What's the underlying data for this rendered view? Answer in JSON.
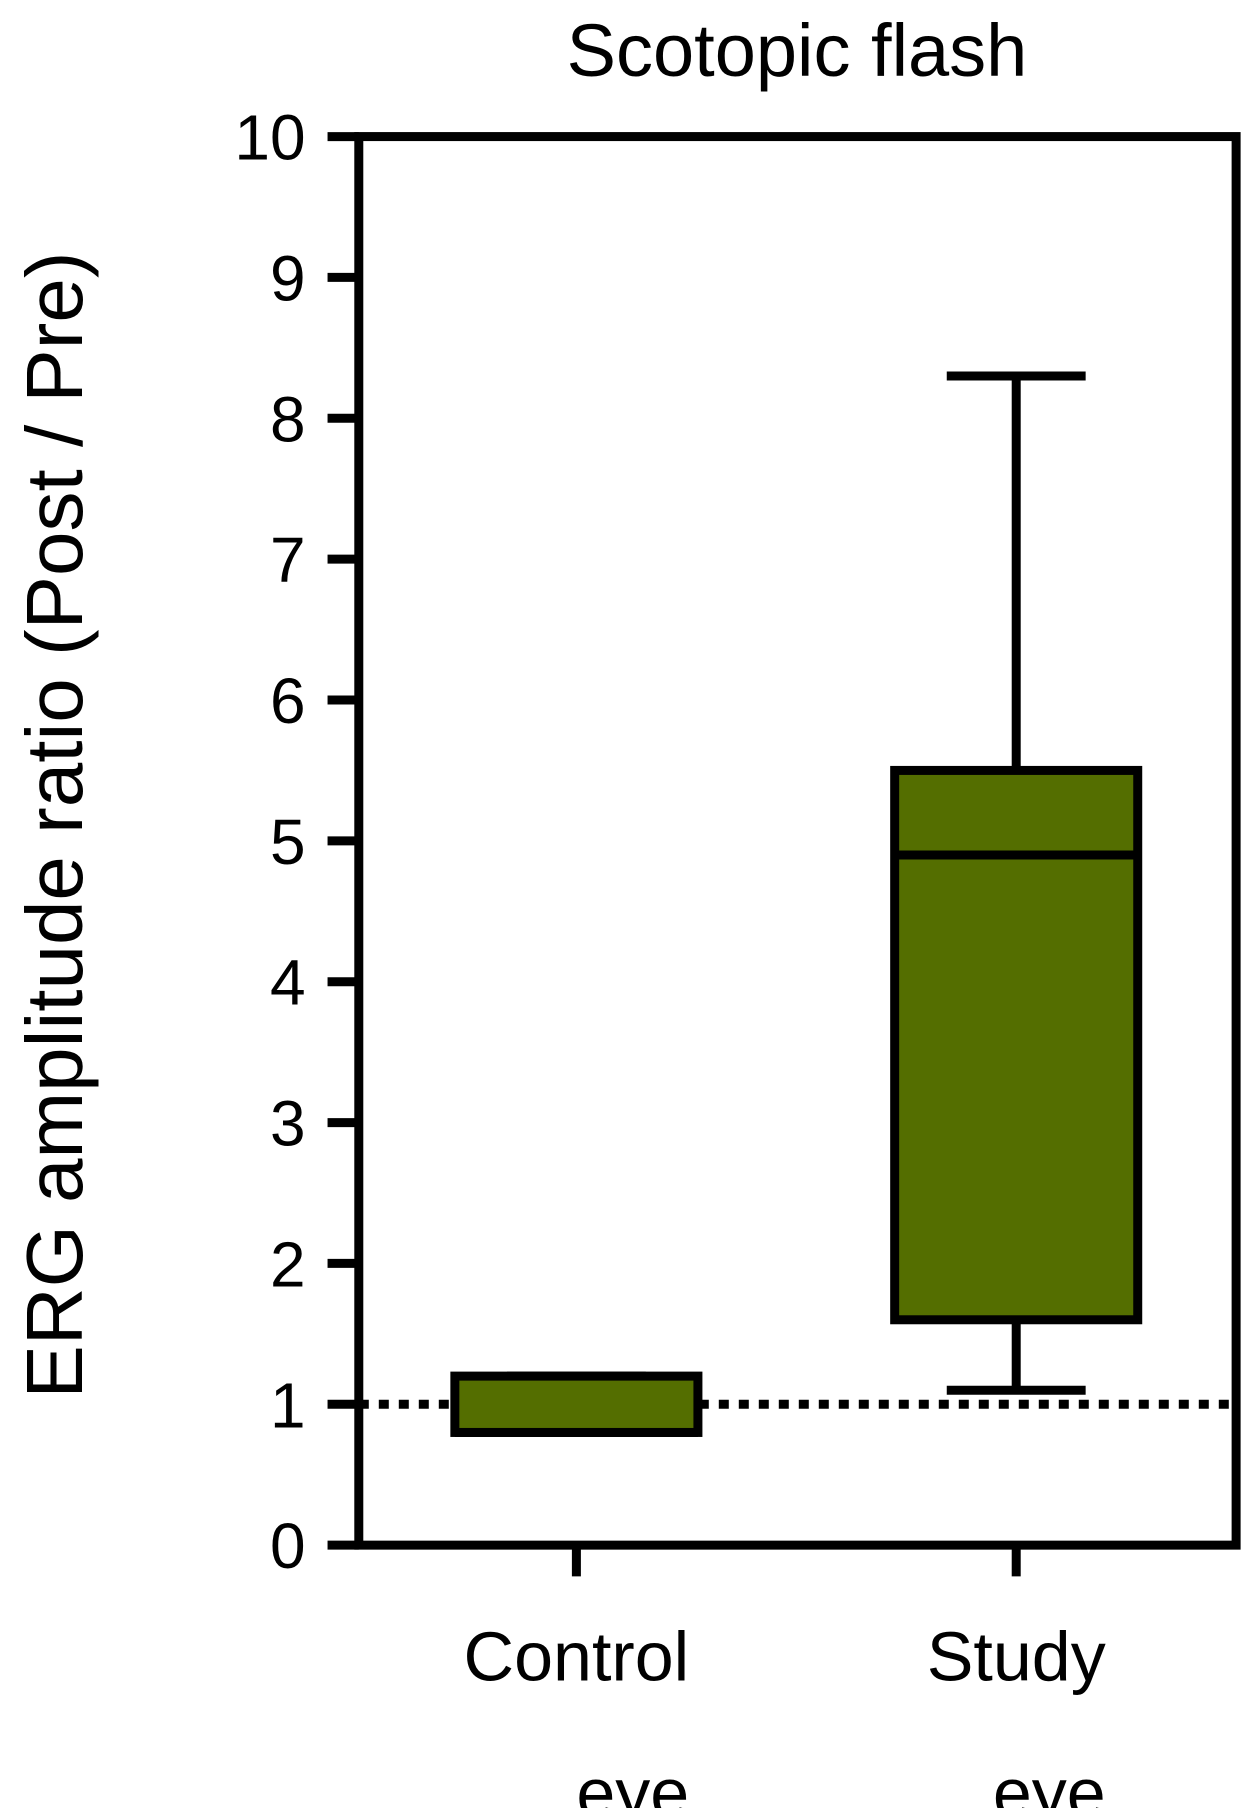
{
  "chart_data": {
    "type": "box",
    "title": "Scotopic flash",
    "y_label": "ERG amplitude ratio (Post / Pre)",
    "categories": [
      "Control eye",
      "Study eye"
    ],
    "boxes": [
      {
        "min": 0.8,
        "q1": 0.8,
        "median": 0.8,
        "q3": 1.2,
        "max": 1.2
      },
      {
        "min": 1.1,
        "q1": 1.6,
        "median": 4.9,
        "q3": 5.5,
        "max": 8.3
      }
    ],
    "color": "#546e00",
    "reference_line": 1,
    "ylim": [
      0,
      10
    ],
    "yticks": [
      0,
      1,
      2,
      3,
      4,
      5,
      6,
      7,
      8,
      9,
      10
    ]
  }
}
